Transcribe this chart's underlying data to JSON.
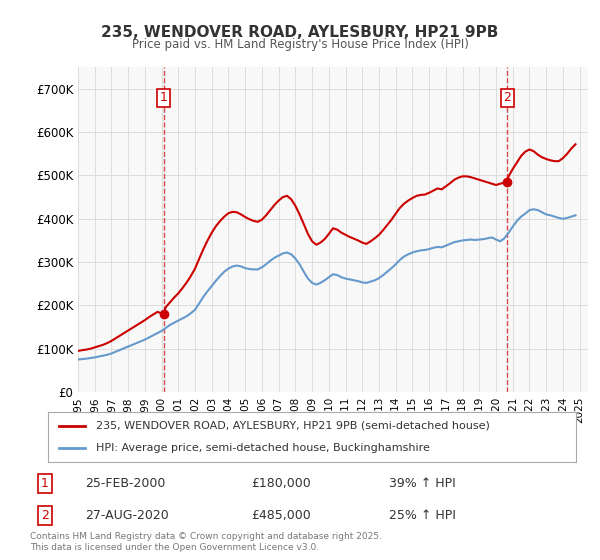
{
  "title": "235, WENDOVER ROAD, AYLESBURY, HP21 9PB",
  "subtitle": "Price paid vs. HM Land Registry's House Price Index (HPI)",
  "ylabel": "",
  "ylim": [
    0,
    750000
  ],
  "yticks": [
    0,
    100000,
    200000,
    300000,
    400000,
    500000,
    600000,
    700000
  ],
  "ytick_labels": [
    "£0",
    "£100K",
    "£200K",
    "£300K",
    "£400K",
    "£500K",
    "£600K",
    "£700K"
  ],
  "legend_line1": "235, WENDOVER ROAD, AYLESBURY, HP21 9PB (semi-detached house)",
  "legend_line2": "HPI: Average price, semi-detached house, Buckinghamshire",
  "annotation1_label": "1",
  "annotation1_date": "25-FEB-2000",
  "annotation1_price": "£180,000",
  "annotation1_hpi": "39% ↑ HPI",
  "annotation2_label": "2",
  "annotation2_date": "27-AUG-2020",
  "annotation2_price": "£485,000",
  "annotation2_hpi": "25% ↑ HPI",
  "footer": "Contains HM Land Registry data © Crown copyright and database right 2025.\nThis data is licensed under the Open Government Licence v3.0.",
  "line_color_red": "#cc0000",
  "line_color_blue": "#6699cc",
  "vline_color": "#cc0000",
  "vline_style": "--",
  "hpi_years": [
    1995,
    1995.25,
    1995.5,
    1995.75,
    1996,
    1996.25,
    1996.5,
    1996.75,
    1997,
    1997.25,
    1997.5,
    1997.75,
    1998,
    1998.25,
    1998.5,
    1998.75,
    1999,
    1999.25,
    1999.5,
    1999.75,
    2000,
    2000.25,
    2000.5,
    2000.75,
    2001,
    2001.25,
    2001.5,
    2001.75,
    2002,
    2002.25,
    2002.5,
    2002.75,
    2003,
    2003.25,
    2003.5,
    2003.75,
    2004,
    2004.25,
    2004.5,
    2004.75,
    2005,
    2005.25,
    2005.5,
    2005.75,
    2006,
    2006.25,
    2006.5,
    2006.75,
    2007,
    2007.25,
    2007.5,
    2007.75,
    2008,
    2008.25,
    2008.5,
    2008.75,
    2009,
    2009.25,
    2009.5,
    2009.75,
    2010,
    2010.25,
    2010.5,
    2010.75,
    2011,
    2011.25,
    2011.5,
    2011.75,
    2012,
    2012.25,
    2012.5,
    2012.75,
    2013,
    2013.25,
    2013.5,
    2013.75,
    2014,
    2014.25,
    2014.5,
    2014.75,
    2015,
    2015.25,
    2015.5,
    2015.75,
    2016,
    2016.25,
    2016.5,
    2016.75,
    2017,
    2017.25,
    2017.5,
    2017.75,
    2018,
    2018.25,
    2018.5,
    2018.75,
    2019,
    2019.25,
    2019.5,
    2019.75,
    2020,
    2020.25,
    2020.5,
    2020.75,
    2021,
    2021.25,
    2021.5,
    2021.75,
    2022,
    2022.25,
    2022.5,
    2022.75,
    2023,
    2023.25,
    2023.5,
    2023.75,
    2024,
    2024.25,
    2024.5,
    2024.75
  ],
  "hpi_values": [
    75000,
    76000,
    77000,
    78500,
    80000,
    82000,
    84000,
    86000,
    89000,
    93000,
    97000,
    101000,
    105000,
    109000,
    113000,
    117000,
    121000,
    126000,
    131000,
    136000,
    141000,
    148000,
    155000,
    160000,
    165000,
    170000,
    175000,
    182000,
    190000,
    205000,
    220000,
    233000,
    245000,
    257000,
    268000,
    278000,
    285000,
    290000,
    292000,
    290000,
    286000,
    284000,
    283000,
    283000,
    288000,
    295000,
    303000,
    310000,
    315000,
    320000,
    322000,
    318000,
    308000,
    295000,
    278000,
    262000,
    252000,
    248000,
    252000,
    258000,
    265000,
    272000,
    270000,
    265000,
    262000,
    260000,
    258000,
    256000,
    253000,
    252000,
    255000,
    258000,
    263000,
    270000,
    278000,
    286000,
    295000,
    305000,
    313000,
    318000,
    322000,
    325000,
    327000,
    328000,
    330000,
    333000,
    335000,
    334000,
    338000,
    342000,
    346000,
    348000,
    350000,
    351000,
    352000,
    351000,
    352000,
    353000,
    355000,
    357000,
    352000,
    348000,
    355000,
    368000,
    382000,
    395000,
    405000,
    412000,
    420000,
    422000,
    420000,
    415000,
    410000,
    408000,
    405000,
    402000,
    400000,
    402000,
    405000,
    408000
  ],
  "red_years": [
    1995.0,
    1995.25,
    1995.5,
    1995.75,
    1996.0,
    1996.25,
    1996.5,
    1996.75,
    1997.0,
    1997.25,
    1997.5,
    1997.75,
    1998.0,
    1998.25,
    1998.5,
    1998.75,
    1999.0,
    1999.25,
    1999.5,
    1999.75,
    2000.12,
    2000.25,
    2000.5,
    2000.75,
    2001.0,
    2001.25,
    2001.5,
    2001.75,
    2002.0,
    2002.25,
    2002.5,
    2002.75,
    2003.0,
    2003.25,
    2003.5,
    2003.75,
    2004.0,
    2004.25,
    2004.5,
    2004.75,
    2005.0,
    2005.25,
    2005.5,
    2005.75,
    2006.0,
    2006.25,
    2006.5,
    2006.75,
    2007.0,
    2007.25,
    2007.5,
    2007.75,
    2008.0,
    2008.25,
    2008.5,
    2008.75,
    2009.0,
    2009.25,
    2009.5,
    2009.75,
    2010.0,
    2010.25,
    2010.5,
    2010.75,
    2011.0,
    2011.25,
    2011.5,
    2011.75,
    2012.0,
    2012.25,
    2012.5,
    2012.75,
    2013.0,
    2013.25,
    2013.5,
    2013.75,
    2014.0,
    2014.25,
    2014.5,
    2014.75,
    2015.0,
    2015.25,
    2015.5,
    2015.75,
    2016.0,
    2016.25,
    2016.5,
    2016.75,
    2017.0,
    2017.25,
    2017.5,
    2017.75,
    2018.0,
    2018.25,
    2018.5,
    2018.75,
    2019.0,
    2019.25,
    2019.5,
    2019.75,
    2020.0,
    2020.25,
    2020.66,
    2020.75,
    2021.0,
    2021.25,
    2021.5,
    2021.75,
    2022.0,
    2022.25,
    2022.5,
    2022.75,
    2023.0,
    2023.25,
    2023.5,
    2023.75,
    2024.0,
    2024.25,
    2024.5,
    2024.75
  ],
  "red_values": [
    95000,
    96500,
    98000,
    100000,
    103000,
    106000,
    109000,
    113000,
    118000,
    124000,
    130000,
    136000,
    142000,
    148000,
    154000,
    160000,
    166000,
    173000,
    179000,
    185000,
    180000,
    196000,
    207000,
    218000,
    228000,
    240000,
    253000,
    268000,
    285000,
    308000,
    330000,
    350000,
    368000,
    383000,
    395000,
    405000,
    413000,
    416000,
    415000,
    410000,
    404000,
    399000,
    395000,
    393000,
    398000,
    408000,
    420000,
    432000,
    442000,
    450000,
    453000,
    445000,
    430000,
    410000,
    388000,
    365000,
    348000,
    340000,
    345000,
    353000,
    365000,
    378000,
    375000,
    368000,
    363000,
    358000,
    354000,
    350000,
    345000,
    342000,
    348000,
    355000,
    363000,
    374000,
    386000,
    398000,
    412000,
    425000,
    435000,
    442000,
    448000,
    453000,
    455000,
    456000,
    460000,
    465000,
    470000,
    468000,
    475000,
    482000,
    490000,
    495000,
    498000,
    498000,
    496000,
    493000,
    490000,
    487000,
    484000,
    481000,
    478000,
    481000,
    485000,
    498000,
    515000,
    530000,
    545000,
    555000,
    560000,
    556000,
    548000,
    542000,
    538000,
    535000,
    533000,
    533000,
    540000,
    550000,
    562000,
    572000
  ],
  "vline1_x": 2000.12,
  "vline2_x": 2020.66,
  "marker1_y": 180000,
  "marker2_y": 485000,
  "xtick_years": [
    1995,
    1996,
    1997,
    1998,
    1999,
    2000,
    2001,
    2002,
    2003,
    2004,
    2005,
    2006,
    2007,
    2008,
    2009,
    2010,
    2011,
    2012,
    2013,
    2014,
    2015,
    2016,
    2017,
    2018,
    2019,
    2020,
    2021,
    2022,
    2023,
    2024,
    2025
  ],
  "bg_color": "#ffffff",
  "plot_bg_color": "#f8f8f8"
}
